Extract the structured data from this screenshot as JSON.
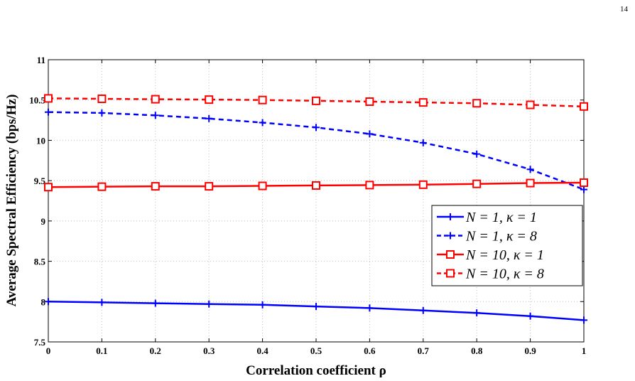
{
  "page_number": "14",
  "chart_data": {
    "type": "line",
    "xlabel": "Correlation coefficient ρ",
    "ylabel": "Average Spectral Efficiency (bps/Hz)",
    "xlim": [
      0,
      1
    ],
    "ylim": [
      7.5,
      11
    ],
    "grid": true,
    "legend_position": "right",
    "x": [
      0,
      0.1,
      0.2,
      0.3,
      0.4,
      0.5,
      0.6,
      0.7,
      0.8,
      0.9,
      1
    ],
    "xticks": [
      "0",
      "0.1",
      "0.2",
      "0.3",
      "0.4",
      "0.5",
      "0.6",
      "0.7",
      "0.8",
      "0.9",
      "1"
    ],
    "yticks": [
      "7.5",
      "8",
      "8.5",
      "9",
      "9.5",
      "10",
      "10.5",
      "11"
    ],
    "series": [
      {
        "name": "N = 1, κ = 1",
        "color": "#0000ff",
        "dash": "solid",
        "marker": "plus",
        "values": [
          8.0,
          7.99,
          7.98,
          7.97,
          7.96,
          7.94,
          7.92,
          7.89,
          7.86,
          7.82,
          7.77
        ]
      },
      {
        "name": "N = 1, κ = 8",
        "color": "#0000ff",
        "dash": "dashed",
        "marker": "plus",
        "values": [
          10.35,
          10.34,
          10.31,
          10.27,
          10.22,
          10.16,
          10.08,
          9.97,
          9.83,
          9.64,
          9.39
        ]
      },
      {
        "name": "N = 10, κ = 1",
        "color": "#ff0000",
        "dash": "solid",
        "marker": "square",
        "values": [
          9.42,
          9.425,
          9.43,
          9.43,
          9.435,
          9.44,
          9.445,
          9.45,
          9.46,
          9.47,
          9.475
        ]
      },
      {
        "name": "N = 10, κ = 8",
        "color": "#ff0000",
        "dash": "dashed",
        "marker": "square",
        "values": [
          10.52,
          10.515,
          10.51,
          10.505,
          10.5,
          10.49,
          10.48,
          10.47,
          10.46,
          10.44,
          10.42
        ]
      }
    ]
  }
}
